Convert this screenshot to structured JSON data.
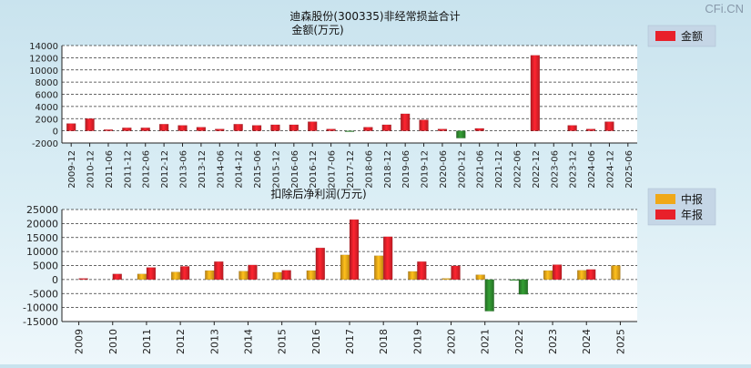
{
  "watermark": "CFi.CN",
  "colors": {
    "positive": "#e8202a",
    "negative": "#2e8b2e",
    "interim": "#f0a818",
    "grid": "#333333"
  },
  "chart_data": [
    {
      "type": "bar",
      "title": "迪森股份(300335)非经常损益合计",
      "subtitle": "金额(万元)",
      "legend": [
        "金额"
      ],
      "legend_position": "top-right",
      "ylim": [
        -2000,
        14000
      ],
      "yticks": [
        -2000,
        0,
        2000,
        4000,
        6000,
        8000,
        10000,
        12000,
        14000
      ],
      "grid": true,
      "categories": [
        "2009-12",
        "2010-12",
        "2011-06",
        "2011-12",
        "2012-06",
        "2012-12",
        "2013-06",
        "2013-12",
        "2014-06",
        "2014-12",
        "2015-06",
        "2015-12",
        "2016-06",
        "2016-12",
        "2017-06",
        "2017-12",
        "2018-06",
        "2018-12",
        "2019-06",
        "2019-12",
        "2020-06",
        "2020-12",
        "2021-06",
        "2021-12",
        "2022-06",
        "2022-12",
        "2023-06",
        "2023-12",
        "2024-06",
        "2024-12",
        "2025-06"
      ],
      "series": [
        {
          "name": "金额",
          "values": [
            1200,
            2000,
            200,
            500,
            500,
            1100,
            900,
            600,
            300,
            1100,
            900,
            1000,
            1000,
            1500,
            300,
            -150,
            600,
            1000,
            2800,
            1800,
            300,
            -1200,
            400,
            0,
            0,
            12400,
            0,
            900,
            300,
            1500,
            0
          ]
        }
      ]
    },
    {
      "type": "bar",
      "title": "扣除后净利润(万元)",
      "legend": [
        "中报",
        "年报"
      ],
      "legend_position": "top-right",
      "ylim": [
        -15000,
        25000
      ],
      "yticks": [
        -15000,
        -10000,
        -5000,
        0,
        5000,
        10000,
        15000,
        20000,
        25000
      ],
      "grid": true,
      "categories": [
        "2009",
        "2010",
        "2011",
        "2012",
        "2013",
        "2014",
        "2015",
        "2016",
        "2017",
        "2018",
        "2019",
        "2020",
        "2021",
        "2022",
        "2023",
        "2024",
        "2025"
      ],
      "series": [
        {
          "name": "中报",
          "values": [
            null,
            null,
            2000,
            2700,
            3200,
            3000,
            2600,
            3200,
            8800,
            8500,
            2900,
            400,
            1700,
            -300,
            3200,
            3300,
            5000
          ]
        },
        {
          "name": "年报",
          "values": [
            400,
            2000,
            4300,
            4700,
            6400,
            5200,
            3300,
            11300,
            21400,
            15300,
            6400,
            4900,
            -11300,
            -5300,
            5300,
            3600,
            null
          ]
        }
      ]
    }
  ]
}
